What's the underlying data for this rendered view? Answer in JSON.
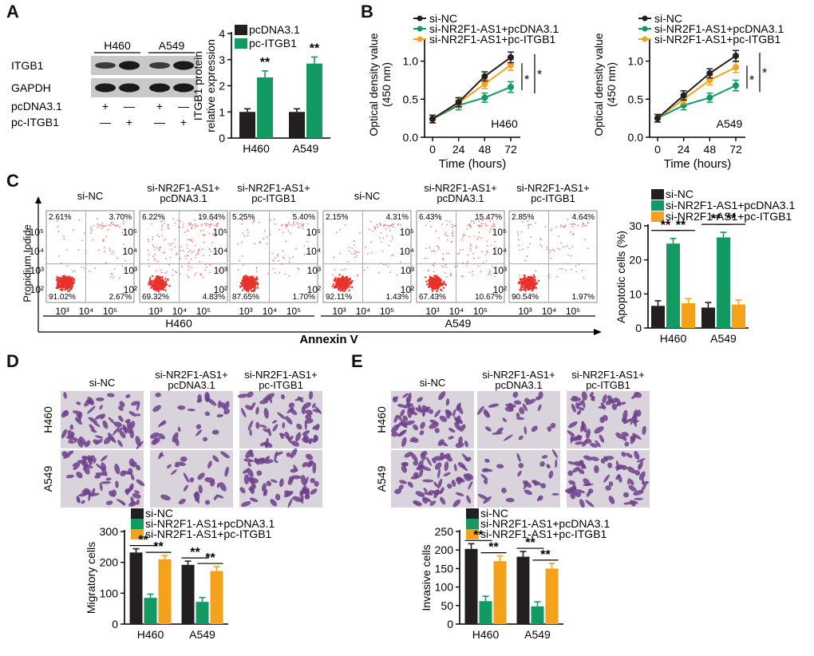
{
  "colors": {
    "black": "#231f20",
    "green": "#139a62",
    "orange": "#f4a11c",
    "gray": "#c8c8c8"
  },
  "panel_labels": {
    "a": "A",
    "b": "B",
    "c": "C",
    "d": "D",
    "e": "E"
  },
  "panelA": {
    "blot": {
      "lanes": [
        "H460",
        "A549"
      ],
      "rows": [
        "ITGB1",
        "GAPDH"
      ],
      "treat_rows": [
        {
          "label": "pcDNA3.1",
          "signs": [
            "+",
            "—",
            "+",
            "—"
          ]
        },
        {
          "label": "pc-ITGB1",
          "signs": [
            "—",
            "+",
            "—",
            "+"
          ]
        }
      ]
    },
    "sig": [
      "**",
      "**"
    ]
  },
  "panelB": {
    "sig": [
      "*",
      "*"
    ]
  },
  "panelC": {
    "groups": [
      "si-NC",
      "si-NR2F1-AS1+\npcDNA3.1",
      "si-NR2F1-AS1+\npc-ITGB1",
      "si-NC",
      "si-NR2F1-AS1+\npcDNA3.1",
      "si-NR2F1-AS1+\npc-ITGB1"
    ],
    "quadrants": [
      [
        "2.61%",
        "3.70%",
        "91.02%",
        "2.67%"
      ],
      [
        "6.22%",
        "19.64%",
        "69.32%",
        "4.83%"
      ],
      [
        "5.25%",
        "5.40%",
        "87.65%",
        "1.70%"
      ],
      [
        "2.15%",
        "4.31%",
        "92.11%",
        "1.43%"
      ],
      [
        "6.43%",
        "15.47%",
        "67.43%",
        "10.67%"
      ],
      [
        "2.85%",
        "4.64%",
        "90.54%",
        "1.97%"
      ]
    ],
    "flow_ylabel": "Propidium Iodide",
    "flow_xlabel": "Annexin V",
    "flow_yticks": [
      "10⁵",
      "10⁴",
      "10³",
      "10²"
    ],
    "flow_xticks": [
      "10³",
      "10⁴",
      "10⁵"
    ],
    "cell_lines": [
      "H460",
      "A549"
    ],
    "sig": [
      "**",
      "**",
      "**",
      "**"
    ]
  },
  "panelD": {
    "groups": [
      "si-NC",
      "si-NR2F1-AS1+\npcDNA3.1",
      "si-NR2F1-AS1+\npc-ITGB1"
    ],
    "rows": [
      "H460",
      "A549"
    ],
    "sig": [
      "**",
      "**",
      "**",
      "**"
    ]
  },
  "panelE": {
    "groups": [
      "si-NC",
      "si-NR2F1-AS1+\npcDNA3.1",
      "si-NR2F1-AS1+\npc-ITGB1"
    ],
    "rows": [
      "H460",
      "A549"
    ],
    "sig": [
      "**",
      "**",
      "**",
      "**"
    ]
  },
  "chart_data": [
    {
      "id": "A",
      "type": "bar",
      "categories": [
        "H460",
        "A549"
      ],
      "series": [
        {
          "name": "pcDNA3.1",
          "values": [
            1.0,
            1.0
          ],
          "errors": [
            0.12,
            0.12
          ]
        },
        {
          "name": "pc-ITGB1",
          "values": [
            2.32,
            2.85
          ],
          "errors": [
            0.25,
            0.25
          ]
        }
      ],
      "xlabel": "",
      "ylabel": "ITGB1 protein\nrelative expression",
      "ylim": [
        0,
        4
      ],
      "yticks": [
        0,
        1,
        2,
        3,
        4
      ],
      "legend": "top-right"
    },
    {
      "id": "B-H460",
      "type": "line",
      "x": [
        0,
        24,
        48,
        72
      ],
      "series": [
        {
          "name": "si-NC",
          "values": [
            0.24,
            0.46,
            0.8,
            1.05
          ],
          "errors": [
            0.05,
            0.06,
            0.06,
            0.07
          ]
        },
        {
          "name": "si-NR2F1-AS1+pcDNA3.1",
          "values": [
            0.24,
            0.42,
            0.52,
            0.66
          ],
          "errors": [
            0.05,
            0.06,
            0.06,
            0.07
          ]
        },
        {
          "name": "si-NR2F1-AS1+pc-ITGB1",
          "values": [
            0.24,
            0.45,
            0.7,
            0.95
          ],
          "errors": [
            0.05,
            0.06,
            0.06,
            0.07
          ]
        }
      ],
      "annotation": "H460",
      "xlabel": "Time (hours)",
      "ylabel": "Optical density value\n(450 nm)",
      "ylim": [
        0,
        1.3
      ],
      "yticks": [
        0.0,
        0.5,
        1.0
      ],
      "legend": "top-left"
    },
    {
      "id": "B-A549",
      "type": "line",
      "x": [
        0,
        24,
        48,
        72
      ],
      "series": [
        {
          "name": "si-NC",
          "values": [
            0.25,
            0.55,
            0.84,
            1.07
          ],
          "errors": [
            0.05,
            0.06,
            0.06,
            0.07
          ]
        },
        {
          "name": "si-NR2F1-AS1+pcDNA3.1",
          "values": [
            0.25,
            0.42,
            0.52,
            0.68
          ],
          "errors": [
            0.05,
            0.06,
            0.06,
            0.07
          ]
        },
        {
          "name": "si-NR2F1-AS1+pc-ITGB1",
          "values": [
            0.25,
            0.5,
            0.75,
            0.92
          ],
          "errors": [
            0.05,
            0.06,
            0.06,
            0.07
          ]
        }
      ],
      "annotation": "A549",
      "xlabel": "Time (hours)",
      "ylabel": "Optical density value\n(450 nm)",
      "ylim": [
        0,
        1.3
      ],
      "yticks": [
        0.0,
        0.5,
        1.0
      ],
      "legend": "top-left"
    },
    {
      "id": "C",
      "type": "bar",
      "categories": [
        "H460",
        "A549"
      ],
      "series": [
        {
          "name": "si-NC",
          "values": [
            6.5,
            6.0
          ],
          "errors": [
            1.5,
            1.5
          ]
        },
        {
          "name": "si-NR2F1-AS1+pcDNA3.1",
          "values": [
            24.8,
            26.6
          ],
          "errors": [
            1.5,
            1.5
          ]
        },
        {
          "name": "si-NR2F1-AS1+pc-ITGB1",
          "values": [
            7.3,
            6.9
          ],
          "errors": [
            1.3,
            1.3
          ]
        }
      ],
      "xlabel": "",
      "ylabel": "Apoptotic cells (%)",
      "ylim": [
        0,
        30
      ],
      "yticks": [
        0,
        10,
        20,
        30
      ],
      "legend": "top-left"
    },
    {
      "id": "D",
      "type": "bar",
      "categories": [
        "H460",
        "A549"
      ],
      "series": [
        {
          "name": "si-NC",
          "values": [
            232,
            192
          ],
          "errors": [
            12,
            12
          ]
        },
        {
          "name": "si-NR2F1-AS1+pcDNA3.1",
          "values": [
            85,
            72
          ],
          "errors": [
            12,
            14
          ]
        },
        {
          "name": "si-NR2F1-AS1+pc-ITGB1",
          "values": [
            210,
            172
          ],
          "errors": [
            12,
            14
          ]
        }
      ],
      "xlabel": "",
      "ylabel": "Migratory cells",
      "ylim": [
        0,
        300
      ],
      "yticks": [
        0,
        100,
        200,
        300
      ],
      "legend": "top-left"
    },
    {
      "id": "E",
      "type": "bar",
      "categories": [
        "H460",
        "A549"
      ],
      "series": [
        {
          "name": "si-NC",
          "values": [
            203,
            182
          ],
          "errors": [
            14,
            14
          ]
        },
        {
          "name": "si-NR2F1-AS1+pcDNA3.1",
          "values": [
            62,
            48
          ],
          "errors": [
            13,
            12
          ]
        },
        {
          "name": "si-NR2F1-AS1+pc-ITGB1",
          "values": [
            170,
            150
          ],
          "errors": [
            14,
            14
          ]
        }
      ],
      "xlabel": "",
      "ylabel": "Invasive cells",
      "ylim": [
        0,
        250
      ],
      "yticks": [
        0,
        50,
        100,
        150,
        200,
        250
      ],
      "legend": "top-left"
    }
  ]
}
